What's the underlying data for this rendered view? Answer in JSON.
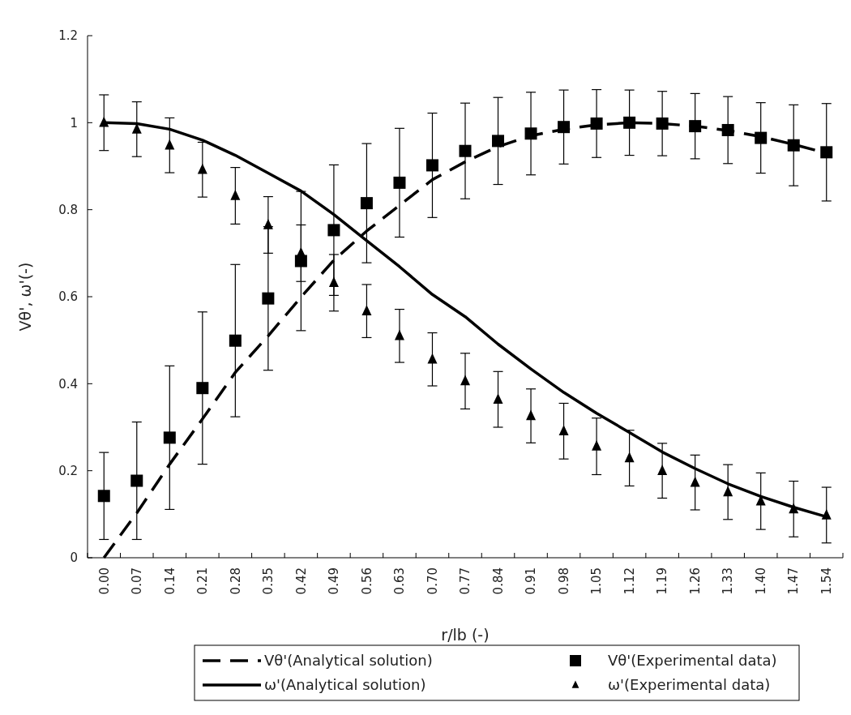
{
  "chart_data": {
    "type": "line",
    "xlabel": "r/lb (-)",
    "ylabel": "Vθ', ω'(-)",
    "categories": [
      "0.00",
      "0.07",
      "0.14",
      "0.21",
      "0.28",
      "0.35",
      "0.42",
      "0.49",
      "0.56",
      "0.63",
      "0.70",
      "0.77",
      "0.84",
      "0.91",
      "0.98",
      "1.05",
      "1.12",
      "1.19",
      "1.26",
      "1.33",
      "1.40",
      "1.47",
      "1.54"
    ],
    "ylim": [
      0,
      1.2
    ],
    "yticks": [
      0,
      0.2,
      0.4,
      0.6,
      0.8,
      1,
      1.2
    ],
    "grid": false,
    "legend": "bottom",
    "series": [
      {
        "name": "Vθ'(Analytical solution)",
        "color": "#000000",
        "line_style": "dashed",
        "marker": "none",
        "values": [
          0,
          0.103,
          0.215,
          0.319,
          0.426,
          0.51,
          0.599,
          0.684,
          0.751,
          0.81,
          0.869,
          0.91,
          0.945,
          0.97,
          0.985,
          0.995,
          1.0,
          0.998,
          0.992,
          0.982,
          0.968,
          0.95,
          0.93
        ]
      },
      {
        "name": "Vθ'(Experimental data)",
        "type": "scatter",
        "color": "#000000",
        "marker": "square",
        "values": [
          0.142,
          0.177,
          0.276,
          0.39,
          0.499,
          0.596,
          0.682,
          0.753,
          0.815,
          0.862,
          0.902,
          0.935,
          0.958,
          0.975,
          0.99,
          0.998,
          1.0,
          0.998,
          0.992,
          0.983,
          0.965,
          0.948,
          0.932
        ],
        "errors": [
          0.1,
          0.135,
          0.165,
          0.175,
          0.175,
          0.165,
          0.16,
          0.15,
          0.137,
          0.125,
          0.12,
          0.11,
          0.1,
          0.095,
          0.085,
          0.078,
          0.075,
          0.074,
          0.075,
          0.077,
          0.081,
          0.093,
          0.112
        ]
      },
      {
        "name": "ω'(Analytical solution)",
        "color": "#000000",
        "line_style": "solid",
        "marker": "none",
        "values": [
          1.0,
          0.998,
          0.985,
          0.96,
          0.925,
          0.884,
          0.843,
          0.789,
          0.729,
          0.669,
          0.605,
          0.554,
          0.491,
          0.434,
          0.38,
          0.332,
          0.288,
          0.243,
          0.205,
          0.17,
          0.141,
          0.116,
          0.094
        ]
      },
      {
        "name": "ω'(Experimental data)",
        "type": "scatter",
        "color": "#000000",
        "marker": "triangle",
        "values": [
          1.0,
          0.985,
          0.948,
          0.892,
          0.832,
          0.765,
          0.7,
          0.632,
          0.567,
          0.51,
          0.456,
          0.406,
          0.364,
          0.326,
          0.291,
          0.256,
          0.229,
          0.2,
          0.173,
          0.151,
          0.13,
          0.112,
          0.098
        ],
        "errors": [
          0.064,
          0.063,
          0.063,
          0.063,
          0.065,
          0.065,
          0.065,
          0.065,
          0.061,
          0.061,
          0.061,
          0.064,
          0.064,
          0.062,
          0.064,
          0.065,
          0.064,
          0.063,
          0.063,
          0.063,
          0.065,
          0.064,
          0.064
        ]
      }
    ]
  }
}
